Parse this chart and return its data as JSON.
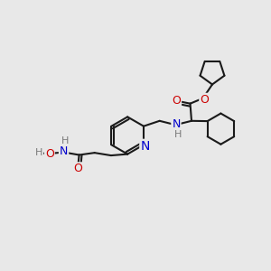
{
  "background_color": "#e8e8e8",
  "bond_color": "#1a1a1a",
  "nitrogen_color": "#0000cc",
  "oxygen_color": "#cc0000",
  "hydrogen_color": "#7a7a7a",
  "line_width": 1.5,
  "font_size": 9,
  "figsize": [
    3.0,
    3.0
  ],
  "dpi": 100,
  "xlim": [
    0,
    10
  ],
  "ylim": [
    0,
    10
  ]
}
